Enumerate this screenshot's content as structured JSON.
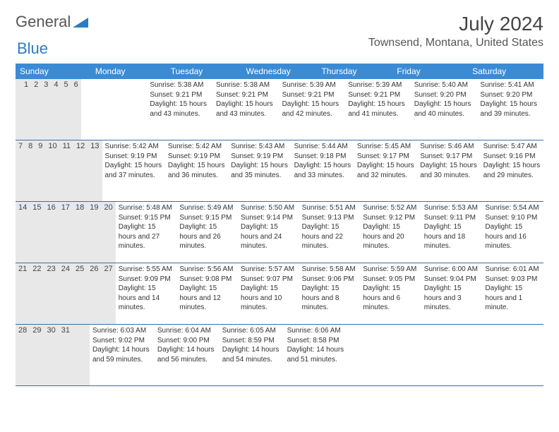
{
  "logo": {
    "text1": "General",
    "text2": "Blue"
  },
  "header": {
    "title": "July 2024",
    "location": "Townsend, Montana, United States"
  },
  "colors": {
    "headerBar": "#3b8bd4",
    "dayNumBg": "#e8e8e8",
    "weekBorder": "#3b6fa3",
    "logoBlue": "#2b7cc4"
  },
  "daysOfWeek": [
    "Sunday",
    "Monday",
    "Tuesday",
    "Wednesday",
    "Thursday",
    "Friday",
    "Saturday"
  ],
  "weeks": [
    [
      {
        "n": "",
        "sunrise": "",
        "sunset": "",
        "daylight": ""
      },
      {
        "n": "1",
        "sunrise": "Sunrise: 5:38 AM",
        "sunset": "Sunset: 9:21 PM",
        "daylight": "Daylight: 15 hours and 43 minutes."
      },
      {
        "n": "2",
        "sunrise": "Sunrise: 5:38 AM",
        "sunset": "Sunset: 9:21 PM",
        "daylight": "Daylight: 15 hours and 43 minutes."
      },
      {
        "n": "3",
        "sunrise": "Sunrise: 5:39 AM",
        "sunset": "Sunset: 9:21 PM",
        "daylight": "Daylight: 15 hours and 42 minutes."
      },
      {
        "n": "4",
        "sunrise": "Sunrise: 5:39 AM",
        "sunset": "Sunset: 9:21 PM",
        "daylight": "Daylight: 15 hours and 41 minutes."
      },
      {
        "n": "5",
        "sunrise": "Sunrise: 5:40 AM",
        "sunset": "Sunset: 9:20 PM",
        "daylight": "Daylight: 15 hours and 40 minutes."
      },
      {
        "n": "6",
        "sunrise": "Sunrise: 5:41 AM",
        "sunset": "Sunset: 9:20 PM",
        "daylight": "Daylight: 15 hours and 39 minutes."
      }
    ],
    [
      {
        "n": "7",
        "sunrise": "Sunrise: 5:42 AM",
        "sunset": "Sunset: 9:19 PM",
        "daylight": "Daylight: 15 hours and 37 minutes."
      },
      {
        "n": "8",
        "sunrise": "Sunrise: 5:42 AM",
        "sunset": "Sunset: 9:19 PM",
        "daylight": "Daylight: 15 hours and 36 minutes."
      },
      {
        "n": "9",
        "sunrise": "Sunrise: 5:43 AM",
        "sunset": "Sunset: 9:19 PM",
        "daylight": "Daylight: 15 hours and 35 minutes."
      },
      {
        "n": "10",
        "sunrise": "Sunrise: 5:44 AM",
        "sunset": "Sunset: 9:18 PM",
        "daylight": "Daylight: 15 hours and 33 minutes."
      },
      {
        "n": "11",
        "sunrise": "Sunrise: 5:45 AM",
        "sunset": "Sunset: 9:17 PM",
        "daylight": "Daylight: 15 hours and 32 minutes."
      },
      {
        "n": "12",
        "sunrise": "Sunrise: 5:46 AM",
        "sunset": "Sunset: 9:17 PM",
        "daylight": "Daylight: 15 hours and 30 minutes."
      },
      {
        "n": "13",
        "sunrise": "Sunrise: 5:47 AM",
        "sunset": "Sunset: 9:16 PM",
        "daylight": "Daylight: 15 hours and 29 minutes."
      }
    ],
    [
      {
        "n": "14",
        "sunrise": "Sunrise: 5:48 AM",
        "sunset": "Sunset: 9:15 PM",
        "daylight": "Daylight: 15 hours and 27 minutes."
      },
      {
        "n": "15",
        "sunrise": "Sunrise: 5:49 AM",
        "sunset": "Sunset: 9:15 PM",
        "daylight": "Daylight: 15 hours and 26 minutes."
      },
      {
        "n": "16",
        "sunrise": "Sunrise: 5:50 AM",
        "sunset": "Sunset: 9:14 PM",
        "daylight": "Daylight: 15 hours and 24 minutes."
      },
      {
        "n": "17",
        "sunrise": "Sunrise: 5:51 AM",
        "sunset": "Sunset: 9:13 PM",
        "daylight": "Daylight: 15 hours and 22 minutes."
      },
      {
        "n": "18",
        "sunrise": "Sunrise: 5:52 AM",
        "sunset": "Sunset: 9:12 PM",
        "daylight": "Daylight: 15 hours and 20 minutes."
      },
      {
        "n": "19",
        "sunrise": "Sunrise: 5:53 AM",
        "sunset": "Sunset: 9:11 PM",
        "daylight": "Daylight: 15 hours and 18 minutes."
      },
      {
        "n": "20",
        "sunrise": "Sunrise: 5:54 AM",
        "sunset": "Sunset: 9:10 PM",
        "daylight": "Daylight: 15 hours and 16 minutes."
      }
    ],
    [
      {
        "n": "21",
        "sunrise": "Sunrise: 5:55 AM",
        "sunset": "Sunset: 9:09 PM",
        "daylight": "Daylight: 15 hours and 14 minutes."
      },
      {
        "n": "22",
        "sunrise": "Sunrise: 5:56 AM",
        "sunset": "Sunset: 9:08 PM",
        "daylight": "Daylight: 15 hours and 12 minutes."
      },
      {
        "n": "23",
        "sunrise": "Sunrise: 5:57 AM",
        "sunset": "Sunset: 9:07 PM",
        "daylight": "Daylight: 15 hours and 10 minutes."
      },
      {
        "n": "24",
        "sunrise": "Sunrise: 5:58 AM",
        "sunset": "Sunset: 9:06 PM",
        "daylight": "Daylight: 15 hours and 8 minutes."
      },
      {
        "n": "25",
        "sunrise": "Sunrise: 5:59 AM",
        "sunset": "Sunset: 9:05 PM",
        "daylight": "Daylight: 15 hours and 6 minutes."
      },
      {
        "n": "26",
        "sunrise": "Sunrise: 6:00 AM",
        "sunset": "Sunset: 9:04 PM",
        "daylight": "Daylight: 15 hours and 3 minutes."
      },
      {
        "n": "27",
        "sunrise": "Sunrise: 6:01 AM",
        "sunset": "Sunset: 9:03 PM",
        "daylight": "Daylight: 15 hours and 1 minute."
      }
    ],
    [
      {
        "n": "28",
        "sunrise": "Sunrise: 6:03 AM",
        "sunset": "Sunset: 9:02 PM",
        "daylight": "Daylight: 14 hours and 59 minutes."
      },
      {
        "n": "29",
        "sunrise": "Sunrise: 6:04 AM",
        "sunset": "Sunset: 9:00 PM",
        "daylight": "Daylight: 14 hours and 56 minutes."
      },
      {
        "n": "30",
        "sunrise": "Sunrise: 6:05 AM",
        "sunset": "Sunset: 8:59 PM",
        "daylight": "Daylight: 14 hours and 54 minutes."
      },
      {
        "n": "31",
        "sunrise": "Sunrise: 6:06 AM",
        "sunset": "Sunset: 8:58 PM",
        "daylight": "Daylight: 14 hours and 51 minutes."
      },
      {
        "n": "",
        "sunrise": "",
        "sunset": "",
        "daylight": ""
      },
      {
        "n": "",
        "sunrise": "",
        "sunset": "",
        "daylight": ""
      },
      {
        "n": "",
        "sunrise": "",
        "sunset": "",
        "daylight": ""
      }
    ]
  ]
}
